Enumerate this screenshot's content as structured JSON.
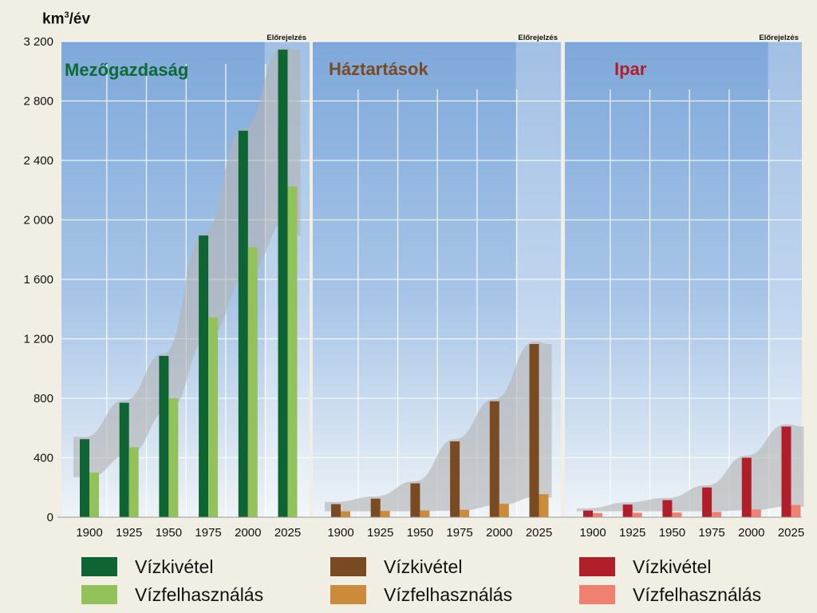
{
  "unit": {
    "base": "km",
    "sup": "3",
    "rest": "/év"
  },
  "chart_data": {
    "type": "bar",
    "ylim": [
      0,
      3200
    ],
    "y_ticks": [
      "0",
      "400",
      "800",
      "1 200",
      "1 600",
      "2 000",
      "2 400",
      "2 800",
      "3 200"
    ],
    "y_tick_values": [
      0,
      400,
      800,
      1200,
      1600,
      2000,
      2400,
      2800,
      3200
    ],
    "categories": [
      "1900",
      "1925",
      "1950",
      "1975",
      "2000",
      "2025"
    ],
    "forecast_label": "Előrejelzés",
    "forecast_category": "2025",
    "grid": true,
    "panels": [
      {
        "title": "Mezőgazdaság",
        "title_color": "#0b6b33",
        "series": [
          {
            "name": "Vízkivétel",
            "color": "#0e6432",
            "values": [
              525,
              770,
              1085,
              1895,
              2600,
              3145
            ]
          },
          {
            "name": "Vízfelhasználás",
            "color": "#94c25a",
            "values": [
              300,
              470,
              800,
              1345,
              1815,
              2225
            ]
          }
        ]
      },
      {
        "title": "Háztartások",
        "title_color": "#7a4a22",
        "series": [
          {
            "name": "Vízkivétel",
            "color": "#7a4a22",
            "values": [
              88,
              125,
              228,
              510,
              780,
              1165
            ]
          },
          {
            "name": "Vízfelhasználás",
            "color": "#cc8b3a",
            "values": [
              40,
              42,
              45,
              50,
              90,
              155
            ]
          }
        ]
      },
      {
        "title": "Ipar",
        "title_color": "#b01e2a",
        "series": [
          {
            "name": "Vízkivétel",
            "color": "#b01e2a",
            "values": [
              45,
              85,
              115,
              200,
              400,
              610
            ]
          },
          {
            "name": "Vízfelhasználás",
            "color": "#f08070",
            "values": [
              28,
              30,
              32,
              36,
              52,
              82
            ]
          }
        ]
      }
    ]
  },
  "legends": [
    [
      {
        "label": "Vízkivétel",
        "color": "#0e6432"
      },
      {
        "label": "Vízfelhasználás",
        "color": "#94c25a"
      }
    ],
    [
      {
        "label": "Vízkivétel",
        "color": "#7a4a22"
      },
      {
        "label": "Vízfelhasználás",
        "color": "#cc8b3a"
      }
    ],
    [
      {
        "label": "Vízkivétel",
        "color": "#b01e2a"
      },
      {
        "label": "Vízfelhasználás",
        "color": "#f08070"
      }
    ]
  ]
}
